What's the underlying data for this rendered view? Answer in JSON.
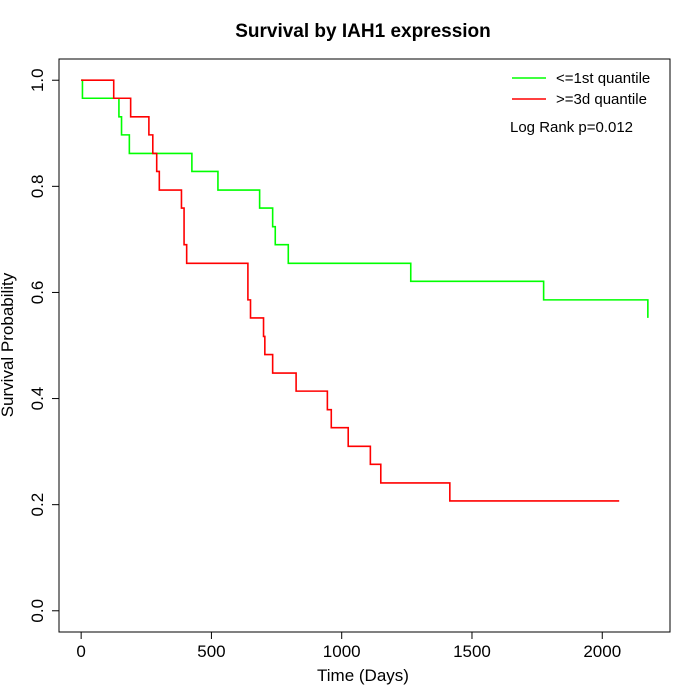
{
  "chart_data": {
    "type": "line",
    "title": "Survival by IAH1 expression",
    "xlabel": "Time (Days)",
    "ylabel": "Survival Probability",
    "xlim": [
      -85,
      2260
    ],
    "ylim": [
      -0.04,
      1.04
    ],
    "xticks": [
      0,
      500,
      1000,
      1500,
      2000
    ],
    "yticks": [
      0.0,
      0.2,
      0.4,
      0.6,
      0.8,
      1.0
    ],
    "xtick_labels": [
      "0",
      "500",
      "1000",
      "1500",
      "2000"
    ],
    "ytick_labels": [
      "0.0",
      "0.2",
      "0.4",
      "0.6",
      "0.8",
      "1.0"
    ],
    "grid": false,
    "legend_position": "top-right",
    "annotation": "Log Rank p=0.012",
    "series": [
      {
        "name": "<=1st quantile",
        "color": "#00ff00",
        "x": [
          0,
          5,
          135,
          145,
          155,
          185,
          360,
          425,
          525,
          685,
          735,
          745,
          795,
          1265,
          1775,
          2175
        ],
        "y": [
          1.0,
          0.966,
          0.966,
          0.931,
          0.897,
          0.862,
          0.862,
          0.828,
          0.793,
          0.759,
          0.724,
          0.69,
          0.655,
          0.621,
          0.586,
          0.552
        ]
      },
      {
        "name": ">=3d quantile",
        "color": "#ff0000",
        "x": [
          0,
          125,
          190,
          260,
          275,
          290,
          300,
          385,
          395,
          405,
          640,
          650,
          700,
          705,
          735,
          825,
          945,
          960,
          1025,
          1110,
          1150,
          1415,
          2065
        ],
        "y": [
          1.0,
          0.966,
          0.931,
          0.897,
          0.862,
          0.828,
          0.793,
          0.759,
          0.69,
          0.655,
          0.586,
          0.552,
          0.517,
          0.483,
          0.448,
          0.414,
          0.379,
          0.345,
          0.31,
          0.276,
          0.241,
          0.207,
          0.207
        ]
      }
    ]
  }
}
